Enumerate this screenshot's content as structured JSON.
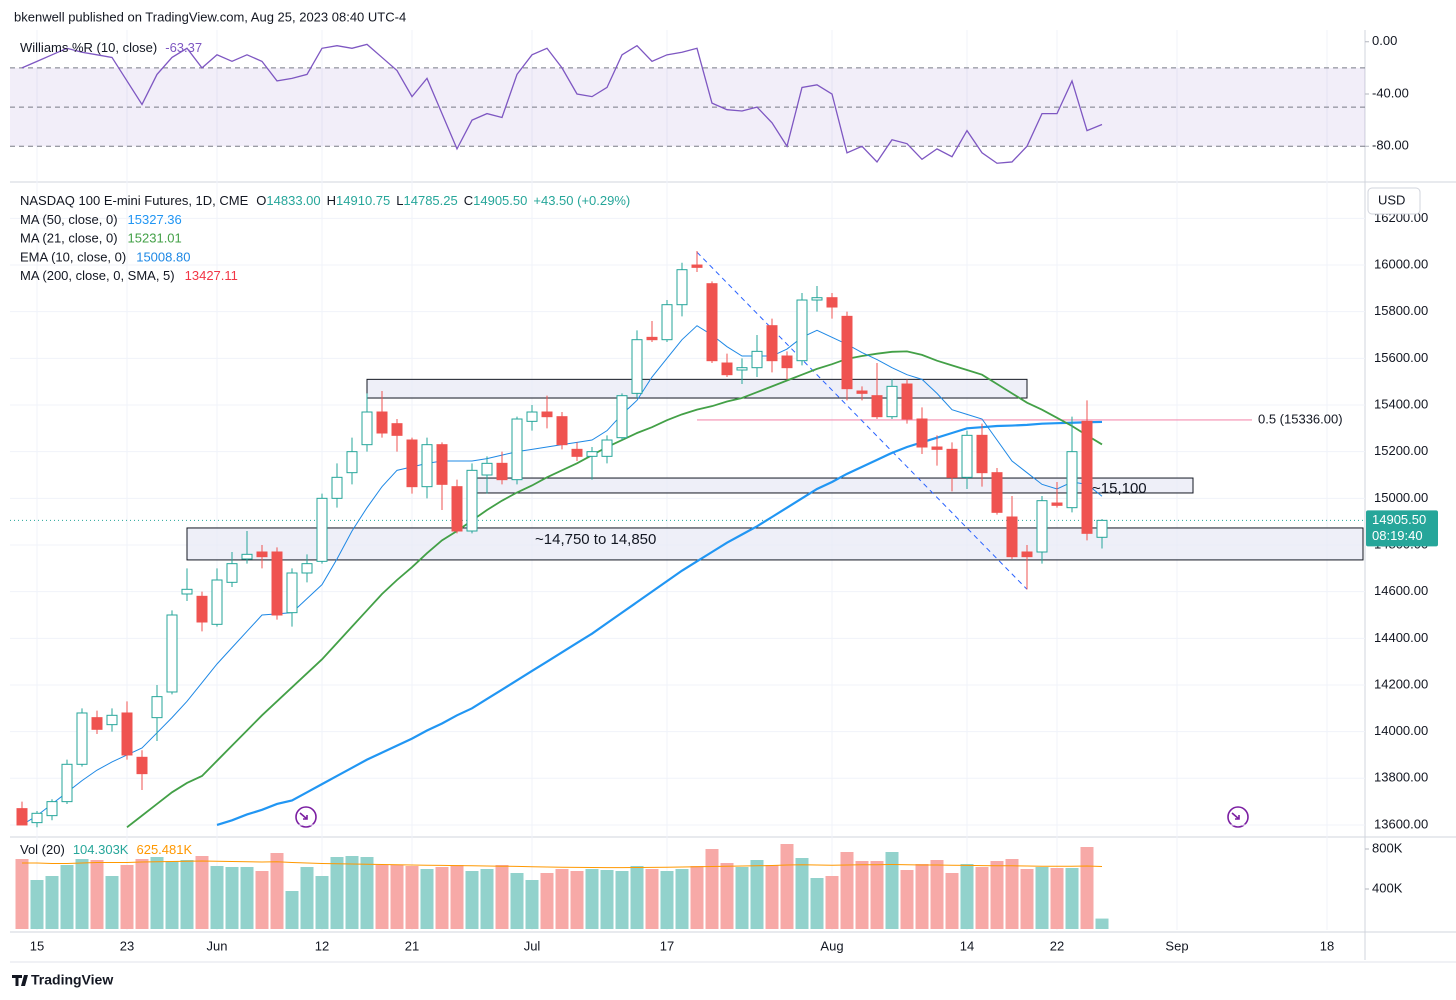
{
  "header": {
    "publisher": "bkenwell published on TradingView.com, Aug 25, 2023 08:40 UTC-4",
    "brand": "TradingView"
  },
  "chart_data": [
    {
      "type": "line",
      "title": "Williams %R (10, close)",
      "value_label": "-63.37",
      "color": "#7e57c2",
      "values": [
        -20,
        -15,
        -10,
        -5,
        -8,
        -10,
        -12,
        -30,
        -48,
        -25,
        -12,
        -5,
        -20,
        -10,
        -15,
        -10,
        -15,
        -30,
        -28,
        -25,
        -5,
        -3,
        -5,
        -2,
        -12,
        -22,
        -42,
        -28,
        -55,
        -82,
        -60,
        -55,
        -58,
        -25,
        -10,
        -5,
        -20,
        -40,
        -42,
        -35,
        -10,
        -3,
        -15,
        -10,
        -8,
        -5,
        -47,
        -52,
        -53,
        -50,
        -62,
        -80,
        -35,
        -33,
        -40,
        -85,
        -80,
        -92,
        -75,
        -78,
        -90,
        -82,
        -88,
        -68,
        -85,
        -93,
        -92,
        -80,
        -55,
        -55,
        -30,
        -68,
        -63.37,
        null,
        null,
        null,
        null,
        null,
        null,
        null,
        null,
        null,
        null,
        null,
        null,
        null,
        null,
        null,
        null,
        null
      ],
      "ylim": [
        -102,
        9
      ],
      "yticks": [
        {
          "value": 0,
          "label": "0.00"
        },
        {
          "value": -40,
          "label": "-40.00"
        },
        {
          "value": -80,
          "label": "-80.00"
        }
      ],
      "bands": {
        "upper": -20,
        "middle": -50,
        "lower": -80
      }
    },
    {
      "type": "candlestick",
      "title": "NASDAQ 100 E-mini Futures, 1D, CME",
      "ohlc_legend": [
        {
          "key": "O",
          "text": "14833.00"
        },
        {
          "key": "H",
          "text": "14910.75"
        },
        {
          "key": "L",
          "text": "14785.25"
        },
        {
          "key": "C",
          "text": "14905.50"
        }
      ],
      "change": "+43.50 (+0.29%)",
      "currency": "USD",
      "categories": [
        null,
        "15",
        null,
        null,
        null,
        null,
        null,
        "23",
        null,
        null,
        null,
        null,
        null,
        "Jun",
        null,
        null,
        null,
        null,
        null,
        null,
        "12",
        null,
        null,
        null,
        null,
        null,
        "21",
        null,
        null,
        null,
        null,
        null,
        null,
        null,
        "Jul",
        null,
        null,
        null,
        null,
        null,
        null,
        null,
        null,
        "17",
        null,
        null,
        null,
        null,
        null,
        null,
        null,
        null,
        null,
        null,
        "Aug",
        null,
        null,
        null,
        null,
        null,
        null,
        null,
        null,
        "14",
        null,
        null,
        null,
        null,
        null,
        "22",
        null,
        null,
        null,
        null,
        null,
        null,
        null,
        "Sep",
        null,
        null,
        null,
        null,
        null,
        null,
        null,
        null,
        null,
        "18",
        null,
        null
      ],
      "open": [
        13670,
        13610,
        13640,
        13700,
        13860,
        14060,
        14030,
        14080,
        13890,
        14060,
        14170,
        14590,
        14580,
        14460,
        14640,
        14740,
        14770,
        14770,
        14510,
        14680,
        14730,
        15000,
        15110,
        15230,
        15370,
        15320,
        15250,
        15050,
        15230,
        15050,
        14860,
        15100,
        15150,
        15080,
        15330,
        15370,
        15350,
        15210,
        15180,
        15180,
        15260,
        15450,
        15690,
        15680,
        15830,
        16000,
        15920,
        15580,
        15550,
        15560,
        15740,
        15610,
        15590,
        15850,
        15860,
        15780,
        15460,
        15440,
        15350,
        15490,
        15340,
        15220,
        15210,
        15090,
        15270,
        15110,
        14920,
        14770,
        14770,
        14980,
        14960,
        15330,
        14833,
        null,
        null,
        null,
        null,
        null,
        null,
        null,
        null,
        null,
        null,
        null,
        null,
        null,
        null,
        null,
        null,
        null
      ],
      "high": [
        13700,
        13660,
        13710,
        13880,
        14100,
        14090,
        14100,
        14130,
        13920,
        14200,
        14520,
        14700,
        14600,
        14700,
        14770,
        14860,
        14800,
        14790,
        14700,
        14760,
        15020,
        15150,
        15260,
        15450,
        15460,
        15340,
        15260,
        15260,
        15240,
        15080,
        15150,
        15180,
        15200,
        15350,
        15400,
        15440,
        15370,
        15240,
        15220,
        15270,
        15450,
        15720,
        15760,
        15850,
        16010,
        16060,
        15930,
        15620,
        15600,
        15700,
        15770,
        15630,
        15880,
        15910,
        15880,
        15800,
        15480,
        15580,
        15510,
        15510,
        15390,
        15270,
        15240,
        15290,
        15320,
        15130,
        15010,
        14800,
        15010,
        15070,
        15350,
        15420,
        14910.75,
        null,
        null,
        null,
        null,
        null,
        null,
        null,
        null,
        null,
        null,
        null,
        null,
        null,
        null,
        null,
        null,
        null
      ],
      "low": [
        13600,
        13590,
        13620,
        13690,
        13850,
        13990,
        14000,
        13880,
        13750,
        13960,
        14160,
        14560,
        14430,
        14450,
        14620,
        14720,
        14700,
        14480,
        14450,
        14640,
        14720,
        14960,
        15060,
        15200,
        15260,
        15200,
        15020,
        15000,
        14950,
        14850,
        14850,
        15020,
        15060,
        15060,
        15290,
        15300,
        15210,
        15160,
        15080,
        15150,
        15250,
        15430,
        15670,
        15670,
        15780,
        15970,
        15580,
        15520,
        15490,
        15520,
        15540,
        15510,
        15570,
        15800,
        15770,
        15420,
        15420,
        15340,
        15340,
        15320,
        15190,
        15140,
        15030,
        15040,
        15050,
        14930,
        14740,
        14610,
        14720,
        14960,
        14940,
        14820,
        14785.25,
        null,
        null,
        null,
        null,
        null,
        null,
        null,
        null,
        null,
        null,
        null,
        null,
        null,
        null,
        null,
        null,
        null
      ],
      "close": [
        13600,
        13650,
        13700,
        13860,
        14080,
        14010,
        14070,
        13900,
        13820,
        14150,
        14500,
        14610,
        14470,
        14650,
        14720,
        14760,
        14750,
        14500,
        14680,
        14720,
        15000,
        15090,
        15200,
        15370,
        15280,
        15270,
        15050,
        15230,
        15060,
        14860,
        15120,
        15150,
        15080,
        15340,
        15370,
        15350,
        15230,
        15180,
        15200,
        15250,
        15440,
        15680,
        15680,
        15830,
        15980,
        15990,
        15590,
        15530,
        15560,
        15630,
        15590,
        15560,
        15850,
        15860,
        15820,
        15470,
        15450,
        15350,
        15480,
        15340,
        15220,
        15210,
        15090,
        15270,
        15110,
        14940,
        14750,
        14750,
        14990,
        14970,
        15200,
        14850,
        14905.5,
        null,
        null,
        null,
        null,
        null,
        null,
        null,
        null,
        null,
        null,
        null,
        null,
        null,
        null,
        null,
        null,
        null
      ],
      "up_color": "#26a69a",
      "down_color": "#ef5350",
      "series": [
        {
          "name": "MA (50, close, 0)",
          "value_label": "15327.36",
          "color": "#2196f3",
          "width": 2.2,
          "values": [
            null,
            null,
            null,
            null,
            null,
            null,
            null,
            null,
            null,
            null,
            null,
            null,
            null,
            13600,
            13620,
            13645,
            13665,
            13690,
            13705,
            13740,
            13775,
            13810,
            13845,
            13880,
            13910,
            13940,
            13970,
            14005,
            14035,
            14070,
            14100,
            14140,
            14180,
            14220,
            14260,
            14300,
            14340,
            14380,
            14420,
            14465,
            14510,
            14555,
            14600,
            14645,
            14690,
            14730,
            14770,
            14810,
            14845,
            14880,
            14920,
            14960,
            15000,
            15040,
            15070,
            15105,
            15135,
            15165,
            15195,
            15220,
            15240,
            15260,
            15280,
            15300,
            15305,
            15310,
            15312,
            15315,
            15320,
            15322,
            15324,
            15326,
            15327.36,
            null,
            null,
            null,
            null,
            null,
            null,
            null,
            null,
            null,
            null,
            null,
            null,
            null,
            null,
            null,
            null,
            null
          ]
        },
        {
          "name": "MA (21, close, 0)",
          "value_label": "15231.01",
          "color": "#43a047",
          "width": 1.8,
          "values": [
            null,
            null,
            null,
            null,
            null,
            null,
            null,
            13590,
            13640,
            13690,
            13740,
            13780,
            13810,
            13875,
            13940,
            14005,
            14070,
            14130,
            14190,
            14250,
            14310,
            14380,
            14450,
            14520,
            14590,
            14650,
            14705,
            14765,
            14820,
            14860,
            14905,
            14950,
            14990,
            15025,
            15055,
            15090,
            15120,
            15150,
            15185,
            15220,
            15250,
            15280,
            15305,
            15335,
            15360,
            15380,
            15395,
            15415,
            15430,
            15455,
            15480,
            15505,
            15530,
            15555,
            15575,
            15598,
            15610,
            15620,
            15628,
            15630,
            15615,
            15590,
            15570,
            15550,
            15530,
            15490,
            15450,
            15410,
            15380,
            15345,
            15310,
            15270,
            15231.01,
            null,
            null,
            null,
            null,
            null,
            null,
            null,
            null,
            null,
            null,
            null,
            null,
            null,
            null,
            null,
            null,
            null
          ]
        },
        {
          "name": "EMA (10, close, 0)",
          "value_label": "15008.80",
          "color": "#1e88e5",
          "width": 1,
          "values": [
            13600,
            13640,
            13690,
            13740,
            13790,
            13835,
            13870,
            13900,
            13930,
            13995,
            14060,
            14130,
            14210,
            14290,
            14360,
            14430,
            14500,
            14505,
            14510,
            14570,
            14630,
            14740,
            14860,
            14960,
            15050,
            15120,
            15135,
            15150,
            15160,
            15160,
            15160,
            15170,
            15185,
            15200,
            15210,
            15220,
            15230,
            15240,
            15250,
            15290,
            15360,
            15420,
            15520,
            15600,
            15680,
            15740,
            15700,
            15650,
            15610,
            15610,
            15610,
            15640,
            15690,
            15720,
            15690,
            15660,
            15625,
            15595,
            15560,
            15530,
            15510,
            15450,
            15380,
            15360,
            15340,
            15250,
            15160,
            15110,
            15060,
            15040,
            15070,
            15060,
            15008.8,
            null,
            null,
            null,
            null,
            null,
            null,
            null,
            null,
            null,
            null,
            null,
            null,
            null,
            null,
            null,
            null,
            null
          ]
        },
        {
          "name": "MA (200, close, 0, SMA, 5)",
          "value_label": "13427.11",
          "color": "#f23645"
        }
      ],
      "ylim": [
        13557,
        16343
      ],
      "yticks": [
        {
          "value": 13600,
          "label": "13600.00"
        },
        {
          "value": 13800,
          "label": "13800.00"
        },
        {
          "value": 14000,
          "label": "14000.00"
        },
        {
          "value": 14200,
          "label": "14200.00"
        },
        {
          "value": 14400,
          "label": "14400.00"
        },
        {
          "value": 14600,
          "label": "14600.00"
        },
        {
          "value": 14800,
          "label": "14800.00"
        },
        {
          "value": 15000,
          "label": "15000.00"
        },
        {
          "value": 15200,
          "label": "15200.00"
        },
        {
          "value": 15400,
          "label": "15400.00"
        },
        {
          "value": 15600,
          "label": "15600.00"
        },
        {
          "value": 15800,
          "label": "15800.00"
        },
        {
          "value": 16000,
          "label": "16000.00"
        },
        {
          "value": 16200,
          "label": "16200.00"
        }
      ],
      "last_price": {
        "value": 14905.5,
        "label": "14905.50",
        "countdown": "08:19:40"
      },
      "zones": [
        {
          "low": 15430,
          "high": 15510
        },
        {
          "low": 15023,
          "high": 15087,
          "label": "~15,100"
        },
        {
          "low": 14736,
          "high": 14873,
          "label": "~14,750 to 14,850"
        }
      ],
      "fib": {
        "value": 15336,
        "label": "0.5 (15336.00)",
        "color": "#f48fb1"
      },
      "trendline": {
        "start": 16055,
        "end": 14610,
        "color": "#2962ff"
      }
    },
    {
      "type": "bar",
      "title": "Vol (20)",
      "value_label": "104.303K",
      "ma_label": "625.481K",
      "ma_color": "#ff9800",
      "up_color": "#92d2cc",
      "down_color": "#f7a9a7",
      "values": [
        700,
        490,
        530,
        640,
        700,
        690,
        530,
        640,
        700,
        720,
        680,
        690,
        730,
        630,
        620,
        620,
        580,
        760,
        380,
        620,
        530,
        720,
        730,
        720,
        640,
        640,
        630,
        600,
        620,
        640,
        580,
        600,
        640,
        560,
        490,
        560,
        600,
        580,
        600,
        590,
        580,
        630,
        600,
        580,
        600,
        630,
        800,
        660,
        620,
        690,
        640,
        850,
        710,
        510,
        530,
        770,
        680,
        680,
        770,
        590,
        650,
        690,
        560,
        650,
        620,
        680,
        700,
        600,
        620,
        610,
        610,
        820,
        104.303,
        null,
        null,
        null,
        null,
        null,
        null,
        null,
        null,
        null,
        null,
        null,
        null,
        null,
        null,
        null,
        null,
        null
      ],
      "ma_values": [
        660,
        660,
        655,
        655,
        660,
        665,
        665,
        665,
        670,
        672,
        675,
        678,
        680,
        678,
        675,
        672,
        670,
        672,
        665,
        660,
        655,
        652,
        650,
        648,
        645,
        642,
        640,
        638,
        636,
        634,
        632,
        630,
        628,
        626,
        622,
        620,
        618,
        616,
        615,
        614,
        614,
        615,
        616,
        618,
        620,
        622,
        625,
        628,
        630,
        632,
        635,
        640,
        642,
        640,
        638,
        640,
        642,
        643,
        645,
        642,
        640,
        640,
        638,
        636,
        634,
        632,
        632,
        630,
        628,
        628,
        627,
        630,
        625.481,
        null,
        null,
        null,
        null,
        null,
        null,
        null,
        null,
        null,
        null,
        null,
        null,
        null,
        null,
        null,
        null,
        null
      ],
      "ylim": [
        0,
        910
      ],
      "yticks": [
        {
          "value": 800,
          "label": "800K"
        },
        {
          "value": 400,
          "label": "400K"
        }
      ]
    }
  ]
}
